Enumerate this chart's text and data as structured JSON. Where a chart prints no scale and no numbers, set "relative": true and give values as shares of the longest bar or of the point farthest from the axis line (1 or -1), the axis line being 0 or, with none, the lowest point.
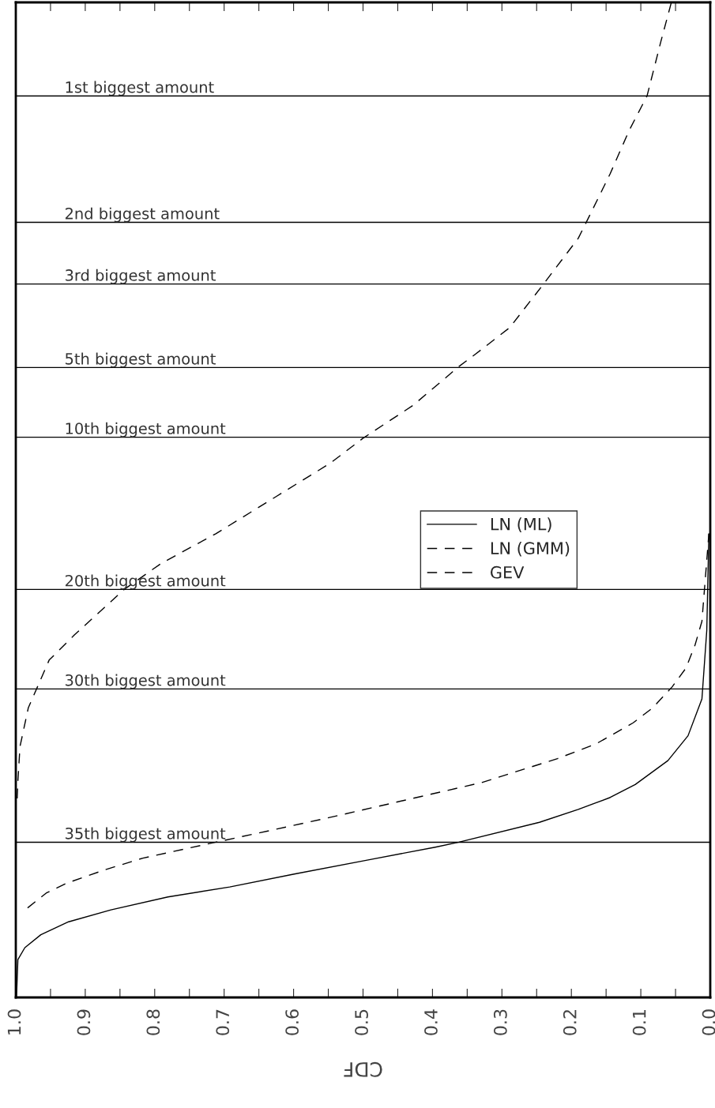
{
  "chart_data": {
    "type": "line",
    "relative": true,
    "xlabel": "CDF",
    "xlim": [
      1.0,
      0.0
    ],
    "xticks": [
      {
        "value": 1,
        "label": "1.0"
      },
      {
        "value": 0.95,
        "label": null
      },
      0.9,
      {
        "value": 0.85,
        "label": null
      },
      0.8,
      {
        "value": 0.75,
        "label": null
      },
      0.7,
      {
        "value": 0.65,
        "label": null
      },
      0.6,
      {
        "value": 0.55,
        "label": null
      },
      0.5,
      {
        "value": 0.45,
        "label": null
      },
      0.4,
      {
        "value": 0.35,
        "label": null
      },
      0.3,
      {
        "value": 0.25,
        "label": null
      },
      0.2,
      {
        "value": 0.15,
        "label": null
      },
      0.1,
      {
        "value": 0.05,
        "label": null
      },
      {
        "value": 0,
        "label": "0.0"
      }
    ],
    "tick_labels": "x",
    "grid": false,
    "legend": "right",
    "marker": "none",
    "series": [
      {
        "name": "LN (ML)",
        "color": "#000000",
        "line_style": "solid",
        "x": [
          0.999,
          0.997,
          0.987,
          0.964,
          0.924,
          0.863,
          0.781,
          0.692,
          0.599,
          0.494,
          0.396,
          0.362,
          0.246,
          0.19,
          0.144,
          0.108,
          0.061,
          0.032,
          0.012,
          0.005,
          0.002
        ],
        "values": [
          0.0,
          0.038,
          0.05,
          0.063,
          0.076,
          0.088,
          0.101,
          0.111,
          0.124,
          0.138,
          0.151,
          0.156,
          0.176,
          0.189,
          0.201,
          0.214,
          0.238,
          0.263,
          0.3,
          0.369,
          0.466
        ]
      },
      {
        "name": "LN (GMM)",
        "color": "#000000",
        "line_style": "dashed",
        "x": [
          0.983,
          0.956,
          0.926,
          0.873,
          0.817,
          0.712,
          0.652,
          0.547,
          0.441,
          0.329,
          0.22,
          0.164,
          0.111,
          0.083,
          0.055,
          0.035,
          0.022,
          0.012,
          0.002
        ],
        "values": [
          0.09,
          0.105,
          0.115,
          0.128,
          0.14,
          0.156,
          0.165,
          0.181,
          0.198,
          0.216,
          0.24,
          0.255,
          0.276,
          0.291,
          0.312,
          0.331,
          0.354,
          0.378,
          0.466
        ]
      },
      {
        "name": "GEV",
        "color": "#000000",
        "line_style": "dashed",
        "x": [
          0.998,
          0.997,
          0.994,
          0.982,
          0.952,
          0.916,
          0.844,
          0.791,
          0.712,
          0.626,
          0.547,
          0.5,
          0.428,
          0.362,
          0.339,
          0.289,
          0.24,
          0.19,
          0.17,
          0.144,
          0.117,
          0.091,
          0.071,
          0.056
        ],
        "values": [
          0.2,
          0.217,
          0.252,
          0.291,
          0.339,
          0.364,
          0.41,
          0.436,
          0.466,
          0.503,
          0.537,
          0.562,
          0.595,
          0.634,
          0.646,
          0.673,
          0.717,
          0.763,
          0.791,
          0.828,
          0.871,
          0.906,
          0.961,
          1.0
        ]
      }
    ],
    "ref_lines": [
      {
        "axis": "y",
        "value": 0.906,
        "label": "1st biggest amount"
      },
      {
        "axis": "y",
        "value": 0.779,
        "label": "2nd biggest amount"
      },
      {
        "axis": "y",
        "value": 0.717,
        "label": "3rd biggest amount"
      },
      {
        "axis": "y",
        "value": 0.633,
        "label": "5th biggest amount"
      },
      {
        "axis": "y",
        "value": 0.563,
        "label": "10th biggest amount"
      },
      {
        "axis": "y",
        "value": 0.41,
        "label": "20th biggest amount"
      },
      {
        "axis": "y",
        "value": 0.31,
        "label": "30th biggest amount"
      },
      {
        "axis": "y",
        "value": 0.156,
        "label": "35th biggest amount"
      }
    ]
  }
}
